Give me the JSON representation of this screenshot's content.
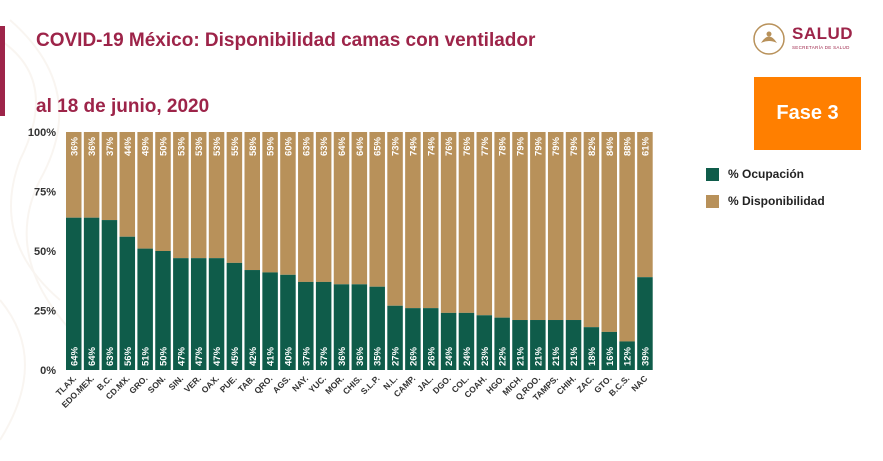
{
  "header": {
    "title_line1": "COVID-19 México: Disponibilidad camas con ventilador",
    "title_line2": "al 18 de junio, 2020"
  },
  "logo": {
    "name": "SALUD",
    "subtitle": "SECRETARÍA DE SALUD"
  },
  "badge": {
    "label": "Fase 3"
  },
  "colors": {
    "accent": "#9d2449",
    "ocupacion": "#0f5c4a",
    "disponibilidad": "#b8915a",
    "badge": "#ff7f00"
  },
  "chart_data": {
    "type": "bar",
    "stacked": true,
    "categories": [
      "TLAX.",
      "EDO.MEX.",
      "B.C.",
      "CD.MX.",
      "GRO.",
      "SON.",
      "SIN.",
      "VER.",
      "OAX.",
      "PUE.",
      "TAB.",
      "QRO.",
      "AGS.",
      "NAY.",
      "YUC.",
      "MOR.",
      "CHIS.",
      "S.L.P.",
      "N.L.",
      "CAMP.",
      "JAL.",
      "DGO.",
      "COL.",
      "COAH.",
      "HGO.",
      "MICH.",
      "Q.ROO.",
      "TAMPS.",
      "CHIH.",
      "ZAC.",
      "GTO.",
      "B.C.S.",
      "NAC"
    ],
    "series": [
      {
        "name": "% Ocupación",
        "values": [
          64,
          64,
          63,
          56,
          51,
          50,
          47,
          47,
          47,
          45,
          42,
          41,
          40,
          37,
          37,
          36,
          36,
          35,
          27,
          26,
          26,
          24,
          24,
          23,
          22,
          21,
          21,
          21,
          21,
          18,
          16,
          12,
          39
        ]
      },
      {
        "name": "% Disponibilidad",
        "values": [
          36,
          36,
          37,
          44,
          49,
          50,
          53,
          53,
          53,
          55,
          58,
          59,
          60,
          63,
          63,
          64,
          64,
          65,
          73,
          74,
          74,
          76,
          76,
          77,
          78,
          79,
          79,
          79,
          79,
          82,
          84,
          88,
          61
        ]
      }
    ],
    "y_ticks": [
      "0%",
      "25%",
      "50%",
      "75%",
      "100%"
    ],
    "ylim": [
      0,
      100
    ],
    "grid": false,
    "legend_position": "right"
  }
}
